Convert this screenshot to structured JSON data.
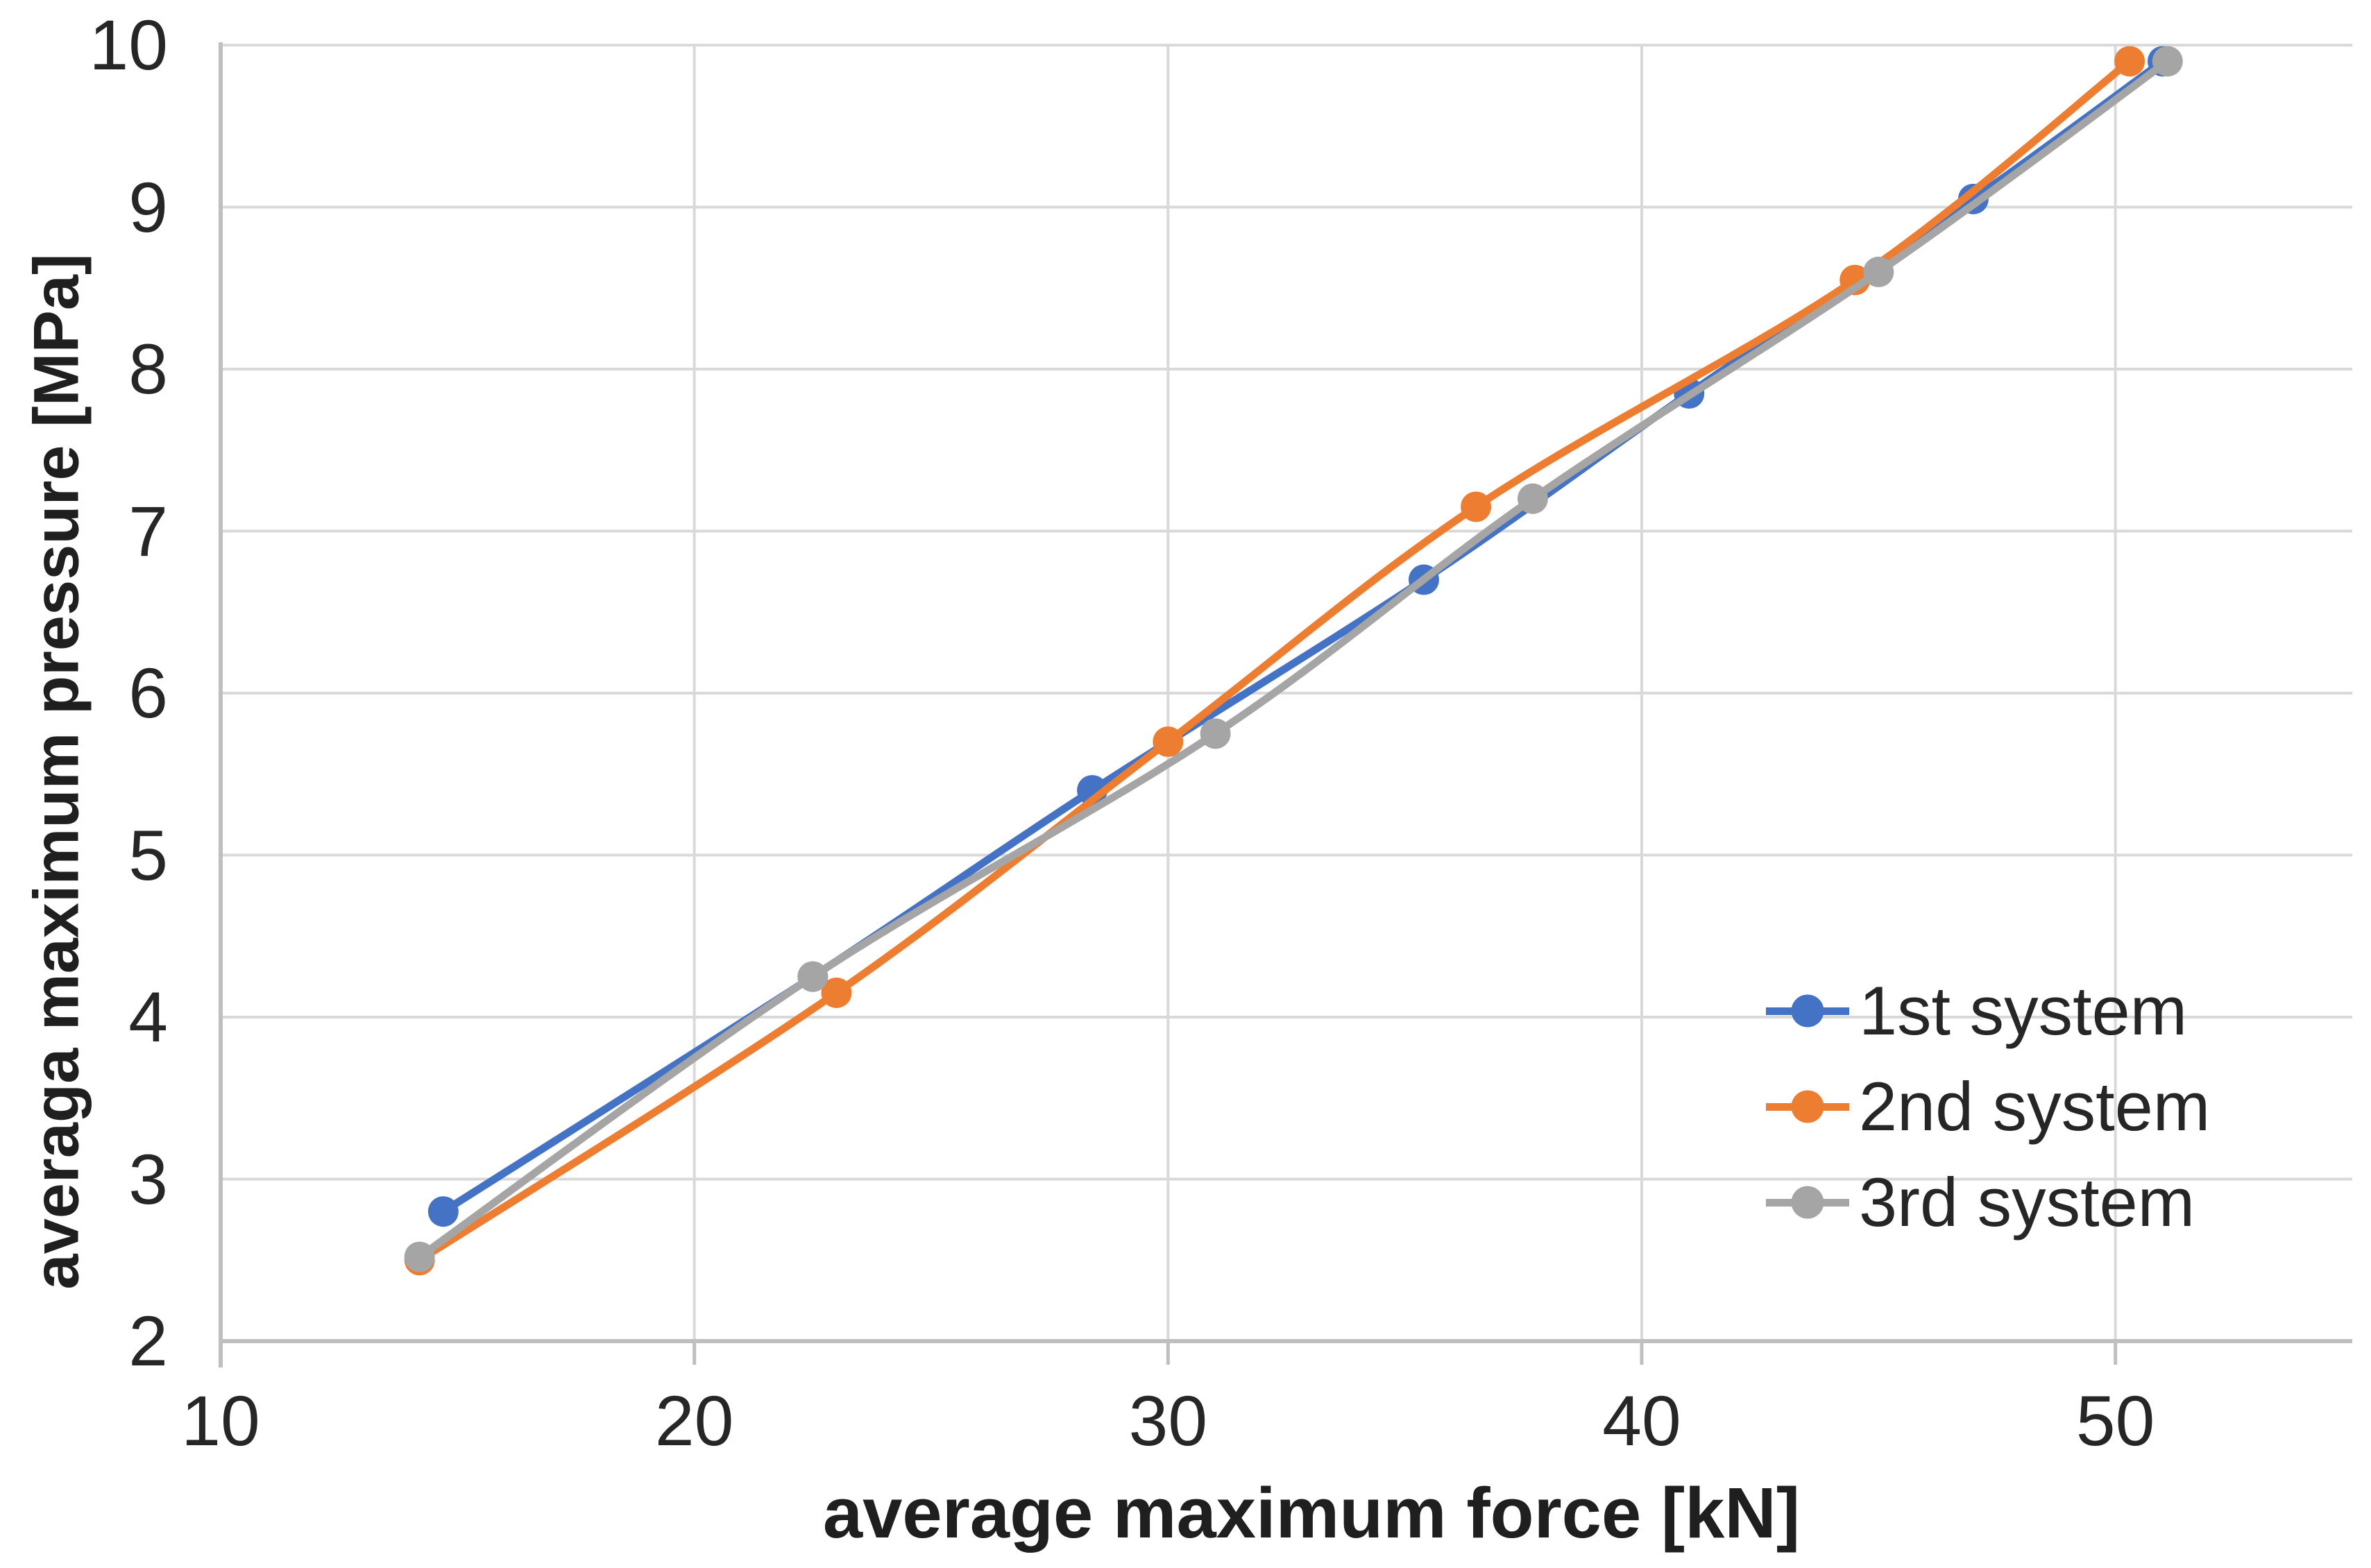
{
  "chart_data": {
    "type": "line",
    "title": "",
    "xlabel": "average maximum force [kN]",
    "ylabel": "averaga maximum pressure [MPa]",
    "xlim": [
      10,
      55
    ],
    "ylim": [
      2,
      10
    ],
    "x_ticks": [
      "10",
      "20",
      "30",
      "40",
      "50"
    ],
    "x_tick_values": [
      10,
      20,
      30,
      40,
      50
    ],
    "y_ticks": [
      "2",
      "3",
      "4",
      "5",
      "6",
      "7",
      "8",
      "9",
      "10"
    ],
    "y_tick_values": [
      2,
      3,
      4,
      5,
      6,
      7,
      8,
      9,
      10
    ],
    "grid": true,
    "legend_position": "inside-right",
    "grid_color": "#d9d9d9",
    "axis_color": "#bfbfbf",
    "text_color": "#262626",
    "series": [
      {
        "name": "1st system",
        "color": "#4472C4",
        "points": [
          [
            14.7,
            2.8
          ],
          [
            22.5,
            4.25
          ],
          [
            28.4,
            5.4
          ],
          [
            35.4,
            6.7
          ],
          [
            41.0,
            7.85
          ],
          [
            47.0,
            9.05
          ],
          [
            51.0,
            9.9
          ]
        ]
      },
      {
        "name": "2nd system",
        "color": "#ED7D31",
        "points": [
          [
            14.2,
            2.5
          ],
          [
            23.0,
            4.15
          ],
          [
            30.0,
            5.7
          ],
          [
            36.5,
            7.15
          ],
          [
            44.5,
            8.55
          ],
          [
            50.3,
            9.9
          ]
        ]
      },
      {
        "name": "3rd system",
        "color": "#A5A5A5",
        "points": [
          [
            14.2,
            2.52
          ],
          [
            22.5,
            4.25
          ],
          [
            31.0,
            5.75
          ],
          [
            37.7,
            7.2
          ],
          [
            45.0,
            8.6
          ],
          [
            51.1,
            9.9
          ]
        ]
      }
    ]
  }
}
